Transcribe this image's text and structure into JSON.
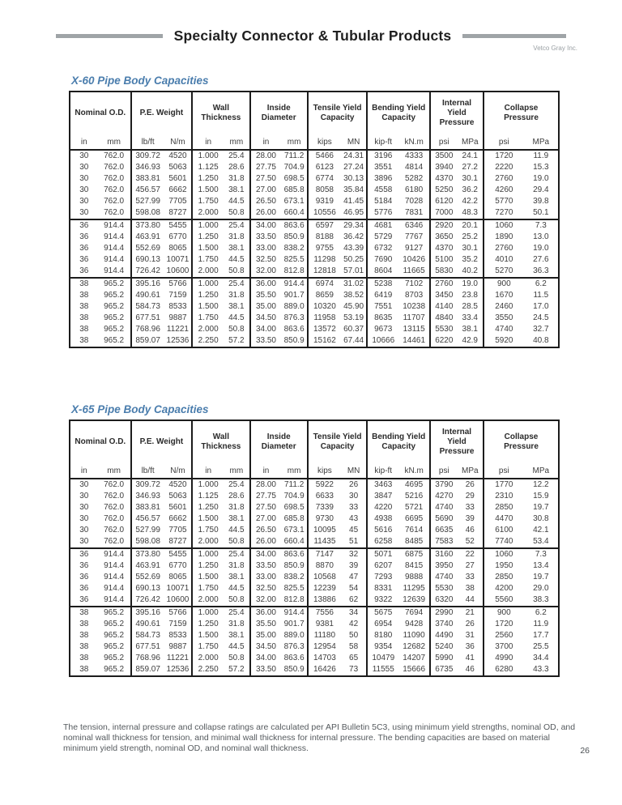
{
  "page": {
    "title": "Specialty Connector & Tubular Products",
    "brand": "Vetco Gray Inc.",
    "page_number": "26",
    "footnote": "The tension, internal pressure and collapse ratings are calculated per API Bulletin 5C3, using minimum yield strengths, nominal OD, and nominal wall thickness for tension, and minimal wall thickness for internal pressure. The bending capacities are based on material minimum yield strength, nominal OD, and nominal wall thickness."
  },
  "colors": {
    "section_title_blue": "#4a7dad",
    "rule_gray": "#9fa4a7",
    "border_black": "#1c1c1c"
  },
  "columns": {
    "groups": [
      {
        "label": "Nominal O.D.",
        "units": [
          "in",
          "mm"
        ]
      },
      {
        "label": "P.E. Weight",
        "units": [
          "lb/ft",
          "N/m"
        ]
      },
      {
        "label": "Wall Thickness",
        "units": [
          "in",
          "mm"
        ]
      },
      {
        "label": "Inside Diameter",
        "units": [
          "in",
          "mm"
        ]
      },
      {
        "label": "Tensile Yield Capacity",
        "units": [
          "kips",
          "MN"
        ]
      },
      {
        "label": "Bending Yield Capacity",
        "units": [
          "kip-ft",
          "kN.m"
        ]
      },
      {
        "label": "Internal Yield Pressure",
        "units": [
          "psi",
          "MPa"
        ]
      },
      {
        "label": "Collapse Pressure",
        "units": [
          "psi",
          "MPa"
        ]
      }
    ]
  },
  "tables": [
    {
      "title": "X-60 Pipe Body Capacities",
      "row_groups": [
        {
          "rows": [
            [
              "30",
              "762.0",
              "309.72",
              "4520",
              "1.000",
              "25.4",
              "28.00",
              "711.2",
              "5466",
              "24.31",
              "3196",
              "4333",
              "3500",
              "24.1",
              "1720",
              "11.9"
            ],
            [
              "30",
              "762.0",
              "346.93",
              "5063",
              "1.125",
              "28.6",
              "27.75",
              "704.9",
              "6123",
              "27.24",
              "3551",
              "4814",
              "3940",
              "27.2",
              "2220",
              "15.3"
            ],
            [
              "30",
              "762.0",
              "383.81",
              "5601",
              "1.250",
              "31.8",
              "27.50",
              "698.5",
              "6774",
              "30.13",
              "3896",
              "5282",
              "4370",
              "30.1",
              "2760",
              "19.0"
            ],
            [
              "30",
              "762.0",
              "456.57",
              "6662",
              "1.500",
              "38.1",
              "27.00",
              "685.8",
              "8058",
              "35.84",
              "4558",
              "6180",
              "5250",
              "36.2",
              "4260",
              "29.4"
            ],
            [
              "30",
              "762.0",
              "527.99",
              "7705",
              "1.750",
              "44.5",
              "26.50",
              "673.1",
              "9319",
              "41.45",
              "5184",
              "7028",
              "6120",
              "42.2",
              "5770",
              "39.8"
            ],
            [
              "30",
              "762.0",
              "598.08",
              "8727",
              "2.000",
              "50.8",
              "26.00",
              "660.4",
              "10556",
              "46.95",
              "5776",
              "7831",
              "7000",
              "48.3",
              "7270",
              "50.1"
            ]
          ]
        },
        {
          "rows": [
            [
              "36",
              "914.4",
              "373.80",
              "5455",
              "1.000",
              "25.4",
              "34.00",
              "863.6",
              "6597",
              "29.34",
              "4681",
              "6346",
              "2920",
              "20.1",
              "1060",
              "7.3"
            ],
            [
              "36",
              "914.4",
              "463.91",
              "6770",
              "1.250",
              "31.8",
              "33.50",
              "850.9",
              "8188",
              "36.42",
              "5729",
              "7767",
              "3650",
              "25.2",
              "1890",
              "13.0"
            ],
            [
              "36",
              "914.4",
              "552.69",
              "8065",
              "1.500",
              "38.1",
              "33.00",
              "838.2",
              "9755",
              "43.39",
              "6732",
              "9127",
              "4370",
              "30.1",
              "2760",
              "19.0"
            ],
            [
              "36",
              "914.4",
              "690.13",
              "10071",
              "1.750",
              "44.5",
              "32.50",
              "825.5",
              "11298",
              "50.25",
              "7690",
              "10426",
              "5100",
              "35.2",
              "4010",
              "27.6"
            ],
            [
              "36",
              "914.4",
              "726.42",
              "10600",
              "2.000",
              "50.8",
              "32.00",
              "812.8",
              "12818",
              "57.01",
              "8604",
              "11665",
              "5830",
              "40.2",
              "5270",
              "36.3"
            ]
          ]
        },
        {
          "rows": [
            [
              "38",
              "965.2",
              "395.16",
              "5766",
              "1.000",
              "25.4",
              "36.00",
              "914.4",
              "6974",
              "31.02",
              "5238",
              "7102",
              "2760",
              "19.0",
              "900",
              "6.2"
            ],
            [
              "38",
              "965.2",
              "490.61",
              "7159",
              "1.250",
              "31.8",
              "35.50",
              "901.7",
              "8659",
              "38.52",
              "6419",
              "8703",
              "3450",
              "23.8",
              "1670",
              "11.5"
            ],
            [
              "38",
              "965.2",
              "584.73",
              "8533",
              "1.500",
              "38.1",
              "35.00",
              "889.0",
              "10320",
              "45.90",
              "7551",
              "10238",
              "4140",
              "28.5",
              "2460",
              "17.0"
            ],
            [
              "38",
              "965.2",
              "677.51",
              "9887",
              "1.750",
              "44.5",
              "34.50",
              "876.3",
              "11958",
              "53.19",
              "8635",
              "11707",
              "4840",
              "33.4",
              "3550",
              "24.5"
            ],
            [
              "38",
              "965.2",
              "768.96",
              "11221",
              "2.000",
              "50.8",
              "34.00",
              "863.6",
              "13572",
              "60.37",
              "9673",
              "13115",
              "5530",
              "38.1",
              "4740",
              "32.7"
            ],
            [
              "38",
              "965.2",
              "859.07",
              "12536",
              "2.250",
              "57.2",
              "33.50",
              "850.9",
              "15162",
              "67.44",
              "10666",
              "14461",
              "6220",
              "42.9",
              "5920",
              "40.8"
            ]
          ]
        }
      ]
    },
    {
      "title": "X-65 Pipe Body Capacities",
      "row_groups": [
        {
          "rows": [
            [
              "30",
              "762.0",
              "309.72",
              "4520",
              "1.000",
              "25.4",
              "28.00",
              "711.2",
              "5922",
              "26",
              "3463",
              "4695",
              "3790",
              "26",
              "1770",
              "12.2"
            ],
            [
              "30",
              "762.0",
              "346.93",
              "5063",
              "1.125",
              "28.6",
              "27.75",
              "704.9",
              "6633",
              "30",
              "3847",
              "5216",
              "4270",
              "29",
              "2310",
              "15.9"
            ],
            [
              "30",
              "762.0",
              "383.81",
              "5601",
              "1.250",
              "31.8",
              "27.50",
              "698.5",
              "7339",
              "33",
              "4220",
              "5721",
              "4740",
              "33",
              "2850",
              "19.7"
            ],
            [
              "30",
              "762.0",
              "456.57",
              "6662",
              "1.500",
              "38.1",
              "27.00",
              "685.8",
              "9730",
              "43",
              "4938",
              "6695",
              "5690",
              "39",
              "4470",
              "30.8"
            ],
            [
              "30",
              "762.0",
              "527.99",
              "7705",
              "1.750",
              "44.5",
              "26.50",
              "673.1",
              "10095",
              "45",
              "5616",
              "7614",
              "6635",
              "46",
              "6100",
              "42.1"
            ],
            [
              "30",
              "762.0",
              "598.08",
              "8727",
              "2.000",
              "50.8",
              "26.00",
              "660.4",
              "11435",
              "51",
              "6258",
              "8485",
              "7583",
              "52",
              "7740",
              "53.4"
            ]
          ]
        },
        {
          "rows": [
            [
              "36",
              "914.4",
              "373.80",
              "5455",
              "1.000",
              "25.4",
              "34.00",
              "863.6",
              "7147",
              "32",
              "5071",
              "6875",
              "3160",
              "22",
              "1060",
              "7.3"
            ],
            [
              "36",
              "914.4",
              "463.91",
              "6770",
              "1.250",
              "31.8",
              "33.50",
              "850.9",
              "8870",
              "39",
              "6207",
              "8415",
              "3950",
              "27",
              "1950",
              "13.4"
            ],
            [
              "36",
              "914.4",
              "552.69",
              "8065",
              "1.500",
              "38.1",
              "33.00",
              "838.2",
              "10568",
              "47",
              "7293",
              "9888",
              "4740",
              "33",
              "2850",
              "19.7"
            ],
            [
              "36",
              "914.4",
              "690.13",
              "10071",
              "1.750",
              "44.5",
              "32.50",
              "825.5",
              "12239",
              "54",
              "8331",
              "11295",
              "5530",
              "38",
              "4200",
              "29.0"
            ],
            [
              "36",
              "914.4",
              "726.42",
              "10600",
              "2.000",
              "50.8",
              "32.00",
              "812.8",
              "13886",
              "62",
              "9322",
              "12639",
              "6320",
              "44",
              "5560",
              "38.3"
            ]
          ]
        },
        {
          "rows": [
            [
              "38",
              "965.2",
              "395.16",
              "5766",
              "1.000",
              "25.4",
              "36.00",
              "914.4",
              "7556",
              "34",
              "5675",
              "7694",
              "2990",
              "21",
              "900",
              "6.2"
            ],
            [
              "38",
              "965.2",
              "490.61",
              "7159",
              "1.250",
              "31.8",
              "35.50",
              "901.7",
              "9381",
              "42",
              "6954",
              "9428",
              "3740",
              "26",
              "1720",
              "11.9"
            ],
            [
              "38",
              "965.2",
              "584.73",
              "8533",
              "1.500",
              "38.1",
              "35.00",
              "889.0",
              "11180",
              "50",
              "8180",
              "11090",
              "4490",
              "31",
              "2560",
              "17.7"
            ],
            [
              "38",
              "965.2",
              "677.51",
              "9887",
              "1.750",
              "44.5",
              "34.50",
              "876.3",
              "12954",
              "58",
              "9354",
              "12682",
              "5240",
              "36",
              "3700",
              "25.5"
            ],
            [
              "38",
              "965.2",
              "768.96",
              "11221",
              "2.000",
              "50.8",
              "34.00",
              "863.6",
              "14703",
              "65",
              "10479",
              "14207",
              "5990",
              "41",
              "4990",
              "34.4"
            ],
            [
              "38",
              "965.2",
              "859.07",
              "12536",
              "2.250",
              "57.2",
              "33.50",
              "850.9",
              "16426",
              "73",
              "11555",
              "15666",
              "6735",
              "46",
              "6280",
              "43.3"
            ]
          ]
        }
      ]
    }
  ]
}
